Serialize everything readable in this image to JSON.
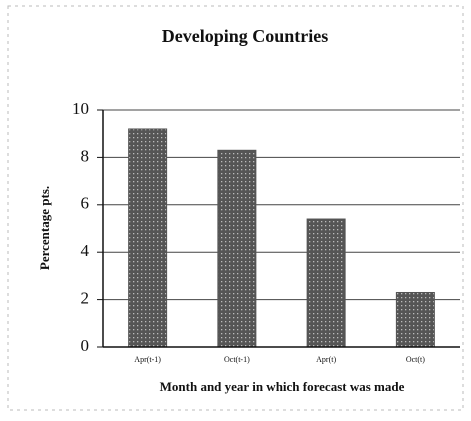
{
  "chart_data": {
    "type": "bar",
    "title": "Developing Countries",
    "y_label": "Percentage pts.",
    "x_label": "Month and year in which forecast was made",
    "categories": [
      "Apr(t-1)",
      "Oct(t-1)",
      "Apr(t)",
      "Oct(t)"
    ],
    "values": [
      9.2,
      8.3,
      5.4,
      2.3
    ],
    "color": "#555555",
    "ylim": [
      0,
      10
    ],
    "yticks": [
      0,
      2,
      4,
      6,
      8,
      10
    ],
    "grid": true
  }
}
